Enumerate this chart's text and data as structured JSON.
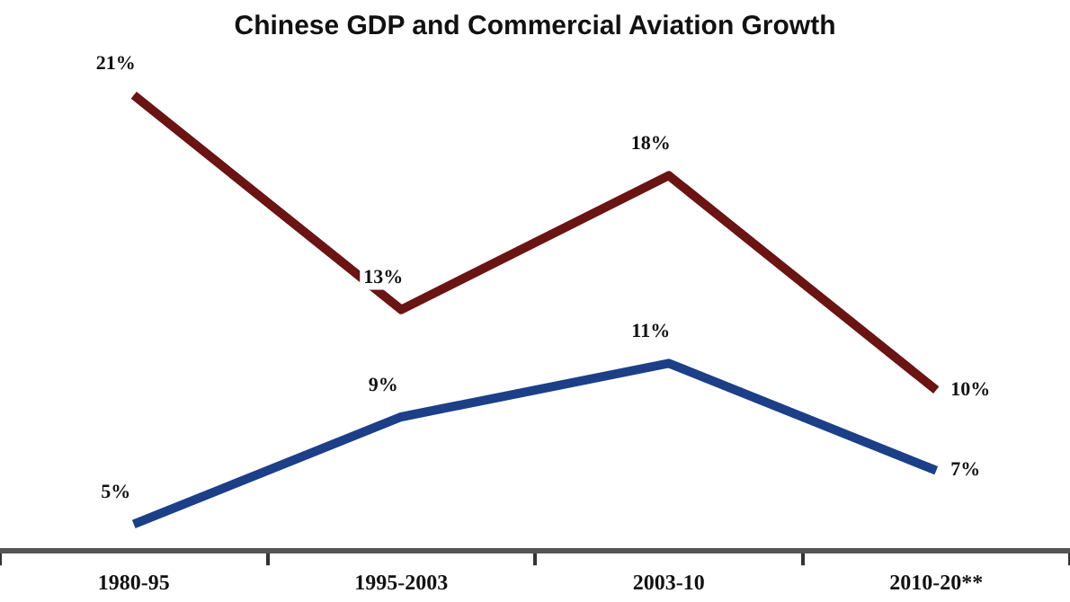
{
  "chart_data": {
    "type": "line",
    "title": "Chinese GDP and Commercial Aviation Growth",
    "categories": [
      "1980-95",
      "1995-2003",
      "2003-10",
      "2010-20**"
    ],
    "series": [
      {
        "color": "#6a1414",
        "values": [
          21,
          13,
          18,
          10
        ],
        "value_labels": [
          "21%",
          "13%",
          "18%",
          "10%"
        ]
      },
      {
        "color": "#1c3f88",
        "values": [
          5,
          9,
          11,
          7
        ],
        "value_labels": [
          "5%",
          "9%",
          "11%",
          "7%"
        ]
      }
    ],
    "tick_labels": "x",
    "marker": "none",
    "line_style": "solid",
    "legend": false,
    "grid": false
  }
}
